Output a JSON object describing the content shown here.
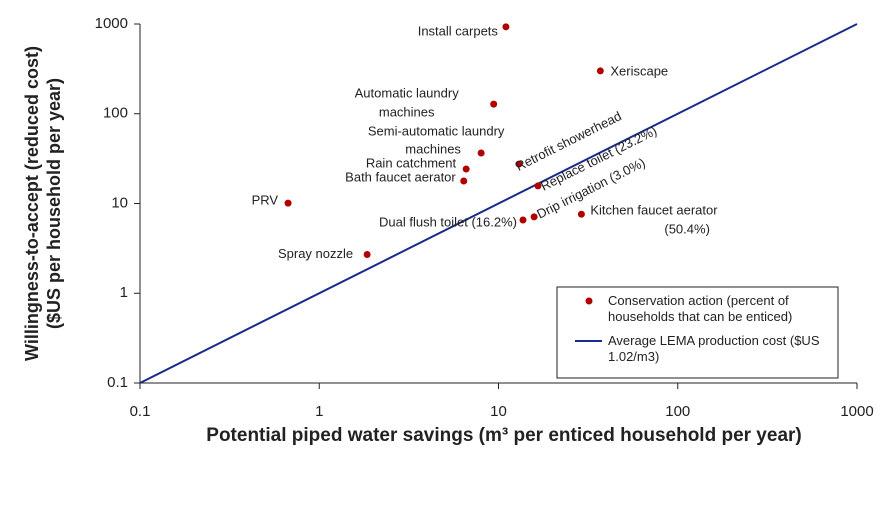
{
  "chart_data": {
    "type": "scatter",
    "xlabel": "Potential piped water savings (m³ per enticed household per year)",
    "ylabel": [
      "Willingness-to-accept (reduced cost)",
      "($US per household per year)"
    ],
    "xscale": "log",
    "yscale": "log",
    "xlim": [
      0.1,
      1000
    ],
    "ylim": [
      0.1,
      1000
    ],
    "xticks": [
      0.1,
      1,
      10,
      100,
      1000
    ],
    "yticks": [
      0.1,
      1,
      10,
      100,
      1000
    ],
    "grid": false,
    "legend": "lower right",
    "series": [
      {
        "name": "Conservation action (percent of households that can be enticed)",
        "color": "#b00000",
        "type": "scatter",
        "x": [
          11,
          37,
          9.4,
          8.0,
          13,
          6.6,
          6.4,
          0.67,
          16.6,
          15.8,
          13.7,
          29,
          1.85
        ],
        "values": [
          930,
          300,
          128,
          36.5,
          27.5,
          24.2,
          17.8,
          10.1,
          15.7,
          7.1,
          6.55,
          7.6,
          2.7
        ],
        "labels": [
          [
            "Install carpets"
          ],
          [
            "Xeriscape"
          ],
          [
            "Automatic laundry",
            "machines"
          ],
          [
            "Semi-automatic laundry",
            "machines"
          ],
          [
            "Retrofit showerhead"
          ],
          [
            "Rain catchment"
          ],
          [
            "Bath faucet aerator"
          ],
          [
            "PRV"
          ],
          [
            "Replace toilet (23.2%)"
          ],
          [
            "Drip irrigation (3.0%)"
          ],
          [
            "Dual flush toilet (16.2%)"
          ],
          [
            "Kitchen faucet aerator",
            "(50.4%)"
          ],
          [
            "Spray nozzle"
          ]
        ]
      },
      {
        "name": "Average LEMA production cost ($US 1.02/m3)",
        "color": "#1a2a8c",
        "type": "line",
        "x": [
          0.1,
          1000
        ],
        "values": [
          0.1,
          1000
        ]
      }
    ]
  }
}
